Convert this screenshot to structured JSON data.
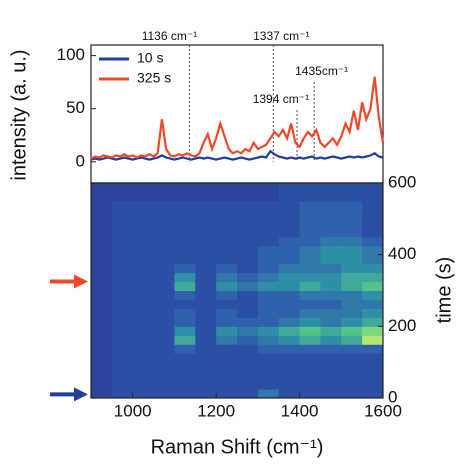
{
  "chart_data": [
    {
      "type": "line",
      "ylabel": "intensity (a. u.)",
      "xlim": [
        900,
        1600
      ],
      "ylim": [
        -20,
        110
      ],
      "yticks": [
        0,
        50,
        100
      ],
      "legend": "upper left",
      "x": [
        900,
        910,
        920,
        930,
        940,
        950,
        960,
        970,
        980,
        990,
        1000,
        1010,
        1020,
        1030,
        1040,
        1050,
        1060,
        1070,
        1080,
        1090,
        1100,
        1110,
        1120,
        1130,
        1140,
        1150,
        1160,
        1170,
        1180,
        1190,
        1200,
        1210,
        1220,
        1230,
        1240,
        1250,
        1260,
        1270,
        1280,
        1290,
        1300,
        1310,
        1320,
        1330,
        1340,
        1350,
        1360,
        1370,
        1380,
        1390,
        1400,
        1410,
        1420,
        1430,
        1440,
        1450,
        1460,
        1470,
        1480,
        1490,
        1500,
        1510,
        1520,
        1530,
        1540,
        1550,
        1560,
        1570,
        1580,
        1590,
        1600
      ],
      "series": [
        {
          "name": "10 s",
          "color": "#1e3f9c",
          "values": [
            2,
            3,
            2,
            3,
            4,
            3,
            2,
            3,
            4,
            3,
            2,
            3,
            4,
            3,
            2,
            3,
            4,
            6,
            4,
            3,
            2,
            3,
            4,
            3,
            2,
            3,
            4,
            3,
            4,
            3,
            2,
            3,
            4,
            3,
            2,
            3,
            4,
            3,
            2,
            3,
            4,
            5,
            4,
            10,
            7,
            5,
            4,
            3,
            4,
            3,
            4,
            3,
            4,
            5,
            3,
            4,
            3,
            4,
            5,
            4,
            3,
            4,
            5,
            4,
            5,
            4,
            5,
            6,
            8,
            5,
            4
          ]
        },
        {
          "name": "325 s",
          "color": "#f04828",
          "values": [
            3,
            5,
            4,
            6,
            5,
            4,
            6,
            5,
            7,
            5,
            6,
            4,
            6,
            5,
            7,
            5,
            8,
            40,
            12,
            6,
            5,
            7,
            6,
            8,
            6,
            5,
            8,
            18,
            26,
            12,
            22,
            36,
            24,
            12,
            8,
            10,
            8,
            12,
            10,
            18,
            12,
            14,
            16,
            22,
            28,
            24,
            30,
            22,
            36,
            18,
            14,
            22,
            28,
            24,
            30,
            18,
            14,
            18,
            22,
            16,
            24,
            36,
            28,
            48,
            30,
            56,
            40,
            50,
            80,
            42,
            18
          ]
        }
      ],
      "annotations": [
        {
          "x": 1136,
          "label": "1136 cm⁻¹"
        },
        {
          "x": 1337,
          "label": "1337 cm⁻¹"
        },
        {
          "x": 1394,
          "label": "1394 cm⁻¹"
        },
        {
          "x": 1435,
          "label": "1435cm⁻¹"
        }
      ]
    },
    {
      "type": "heatmap",
      "xlabel": "Raman Shift (cm⁻¹)",
      "y2label": "time (s)",
      "xlim": [
        900,
        1600
      ],
      "xticks": [
        1000,
        1200,
        1400,
        1600
      ],
      "y2lim": [
        0,
        600
      ],
      "y2ticks": [
        0,
        200,
        400,
        600
      ],
      "xbins": [
        900,
        950,
        1000,
        1050,
        1100,
        1150,
        1200,
        1250,
        1300,
        1350,
        1400,
        1450,
        1500,
        1550,
        1600
      ],
      "ybins": [
        0,
        25,
        50,
        75,
        100,
        125,
        150,
        175,
        200,
        225,
        250,
        275,
        300,
        325,
        350,
        375,
        400,
        425,
        450,
        475,
        500,
        525,
        550,
        575,
        600
      ],
      "zlim": [
        0,
        10
      ],
      "colormap": [
        "#263a8f",
        "#2f55ad",
        "#2f8fa6",
        "#5ccf86",
        "#f2f266"
      ],
      "values": [
        [
          1,
          2,
          2,
          2,
          2,
          2,
          2,
          2,
          4,
          2,
          2,
          2,
          2,
          2
        ],
        [
          1,
          2,
          2,
          2,
          2,
          2,
          2,
          2,
          2,
          2,
          2,
          2,
          2,
          2
        ],
        [
          1,
          2,
          2,
          2,
          2,
          2,
          2,
          2,
          2,
          2,
          2,
          2,
          2,
          2
        ],
        [
          1,
          2,
          2,
          2,
          2,
          2,
          2,
          2,
          2,
          2,
          2,
          2,
          2,
          2
        ],
        [
          1,
          2,
          2,
          2,
          2,
          2,
          2,
          2,
          2,
          2,
          2,
          2,
          2,
          2
        ],
        [
          1,
          2,
          2,
          2,
          3,
          2,
          2,
          2,
          3,
          3,
          3,
          3,
          3,
          3
        ],
        [
          1,
          2,
          2,
          2,
          6,
          2,
          4,
          3,
          4,
          5,
          6,
          5,
          6,
          9
        ],
        [
          1,
          2,
          2,
          2,
          5,
          2,
          5,
          4,
          5,
          6,
          7,
          6,
          7,
          8
        ],
        [
          1,
          2,
          2,
          2,
          3,
          2,
          3,
          3,
          3,
          4,
          5,
          4,
          5,
          6
        ],
        [
          1,
          2,
          2,
          2,
          3,
          2,
          3,
          2,
          3,
          3,
          4,
          4,
          4,
          5
        ],
        [
          1,
          2,
          2,
          2,
          2,
          2,
          2,
          2,
          3,
          3,
          3,
          3,
          4,
          4
        ],
        [
          1,
          2,
          2,
          2,
          3,
          2,
          3,
          2,
          3,
          3,
          4,
          4,
          4,
          5
        ],
        [
          1,
          2,
          2,
          2,
          6,
          2,
          5,
          4,
          5,
          5,
          6,
          5,
          6,
          7
        ],
        [
          1,
          2,
          2,
          2,
          5,
          2,
          4,
          3,
          4,
          5,
          5,
          5,
          6,
          6
        ],
        [
          1,
          2,
          2,
          2,
          3,
          2,
          3,
          2,
          3,
          4,
          4,
          4,
          5,
          5
        ],
        [
          1,
          2,
          2,
          2,
          2,
          2,
          2,
          2,
          3,
          3,
          4,
          5,
          5,
          4
        ],
        [
          1,
          2,
          2,
          2,
          2,
          2,
          2,
          2,
          3,
          3,
          4,
          5,
          5,
          4
        ],
        [
          1,
          2,
          2,
          2,
          2,
          2,
          2,
          2,
          2,
          3,
          3,
          4,
          4,
          3
        ],
        [
          1,
          2,
          2,
          2,
          2,
          2,
          2,
          2,
          2,
          2,
          3,
          3,
          3,
          2
        ],
        [
          1,
          2,
          2,
          2,
          2,
          2,
          2,
          2,
          2,
          2,
          3,
          3,
          3,
          2
        ],
        [
          1,
          2,
          2,
          2,
          2,
          2,
          2,
          2,
          2,
          2,
          3,
          3,
          3,
          2
        ],
        [
          1,
          2,
          2,
          2,
          2,
          2,
          2,
          2,
          2,
          2,
          3,
          3,
          3,
          2
        ],
        [
          1,
          1,
          1,
          1,
          1,
          1,
          1,
          1,
          1,
          2,
          2,
          2,
          2,
          2
        ],
        [
          1,
          1,
          1,
          1,
          1,
          1,
          1,
          1,
          1,
          2,
          2,
          2,
          2,
          2
        ]
      ],
      "arrows": [
        {
          "y": 325,
          "color": "#f04828"
        },
        {
          "y": 10,
          "color": "#1e3f9c"
        }
      ]
    }
  ]
}
